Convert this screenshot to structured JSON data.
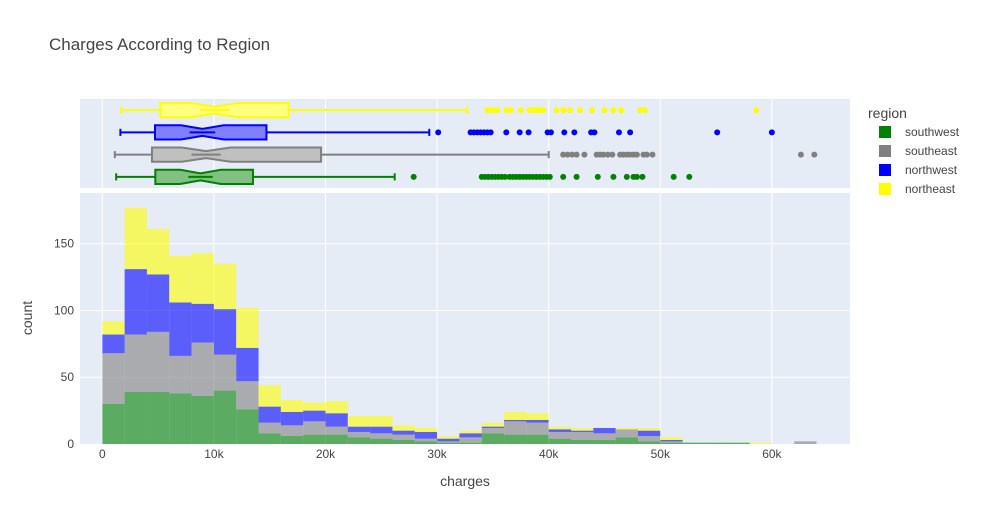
{
  "chart_data": {
    "type": "bar",
    "title": "Charges According to Region",
    "xlabel": "charges",
    "ylabel": "count",
    "xlim": [
      -2000,
      67000
    ],
    "ylim": [
      0,
      188
    ],
    "x_ticks": [
      0,
      10000,
      20000,
      30000,
      40000,
      50000,
      60000
    ],
    "x_tick_labels": [
      "0",
      "10k",
      "20k",
      "30k",
      "40k",
      "50k",
      "60k"
    ],
    "y_ticks": [
      0,
      50,
      100,
      150
    ],
    "y_tick_labels": [
      "0",
      "50",
      "100",
      "150"
    ],
    "barmode": "stack",
    "bin_start": 0,
    "bin_size": 2000,
    "grid": true,
    "legend": {
      "title": "region",
      "placement": "right"
    },
    "series": [
      {
        "name": "southwest",
        "color": "#008000",
        "values": [
          30,
          39,
          39,
          38,
          36,
          40,
          26,
          8,
          6,
          7,
          7,
          5,
          4,
          3,
          2,
          1,
          1,
          8,
          7,
          7,
          4,
          3,
          3,
          5,
          2,
          1,
          1,
          1,
          1,
          0,
          0,
          0
        ],
        "box": {
          "min": 1240,
          "q1": 4750,
          "median": 8800,
          "q3": 13500,
          "upper_fence": 26200,
          "outliers": [
            27900,
            34000,
            34300,
            34600,
            34900,
            35200,
            35500,
            35800,
            36100,
            36500,
            36800,
            37100,
            37400,
            37700,
            38000,
            38300,
            38600,
            38900,
            39200,
            39500,
            39800,
            40100,
            41300,
            42500,
            44400,
            45800,
            47000,
            47600,
            47900,
            48400,
            51200,
            52600
          ]
        }
      },
      {
        "name": "southeast",
        "color": "#808080",
        "values": [
          38,
          43,
          45,
          28,
          40,
          27,
          21,
          8,
          8,
          10,
          6,
          4,
          4,
          4,
          2,
          1,
          4,
          4,
          10,
          9,
          5,
          6,
          5,
          6,
          4,
          1,
          0,
          0,
          0,
          0,
          0,
          2
        ],
        "box": {
          "min": 1120,
          "q1": 4450,
          "median": 9300,
          "q3": 19600,
          "upper_fence": 40000,
          "outliers": [
            41300,
            41700,
            42100,
            42500,
            43200,
            44300,
            44600,
            44900,
            45300,
            45700,
            46400,
            46700,
            47000,
            47300,
            47600,
            47900,
            48500,
            48800,
            49300,
            62600,
            63800
          ]
        }
      },
      {
        "name": "northwest",
        "color": "#0000ff",
        "values": [
          14,
          49,
          43,
          40,
          29,
          34,
          25,
          12,
          10,
          8,
          10,
          4,
          5,
          3,
          5,
          2,
          3,
          1,
          1,
          2,
          2,
          1,
          4,
          0,
          4,
          1,
          0,
          0,
          0,
          0,
          0,
          0
        ],
        "box": {
          "min": 1620,
          "q1": 4720,
          "median": 8970,
          "q3": 14710,
          "upper_fence": 29300,
          "outliers": [
            30100,
            33000,
            33300,
            33600,
            33900,
            34200,
            34500,
            34800,
            36200,
            37400,
            38200,
            39900,
            40200,
            41400,
            42300,
            43800,
            44100,
            46300,
            47300,
            55100,
            60000
          ]
        }
      },
      {
        "name": "northeast",
        "color": "#ffff00",
        "values": [
          10,
          46,
          34,
          35,
          38,
          34,
          30,
          16,
          9,
          6,
          9,
          8,
          8,
          4,
          3,
          2,
          2,
          3,
          6,
          5,
          2,
          2,
          0,
          1,
          2,
          2,
          0,
          0,
          0,
          1,
          0,
          0
        ],
        "box": {
          "min": 1700,
          "q1": 5200,
          "median": 10050,
          "q3": 16700,
          "upper_fence": 32700,
          "outliers": [
            34500,
            34800,
            35100,
            35400,
            36200,
            36600,
            37500,
            38300,
            38600,
            38900,
            39200,
            39500,
            40700,
            41300,
            41900,
            42800,
            43900,
            45000,
            45800,
            46500,
            48200,
            48600,
            58600
          ]
        }
      }
    ]
  }
}
